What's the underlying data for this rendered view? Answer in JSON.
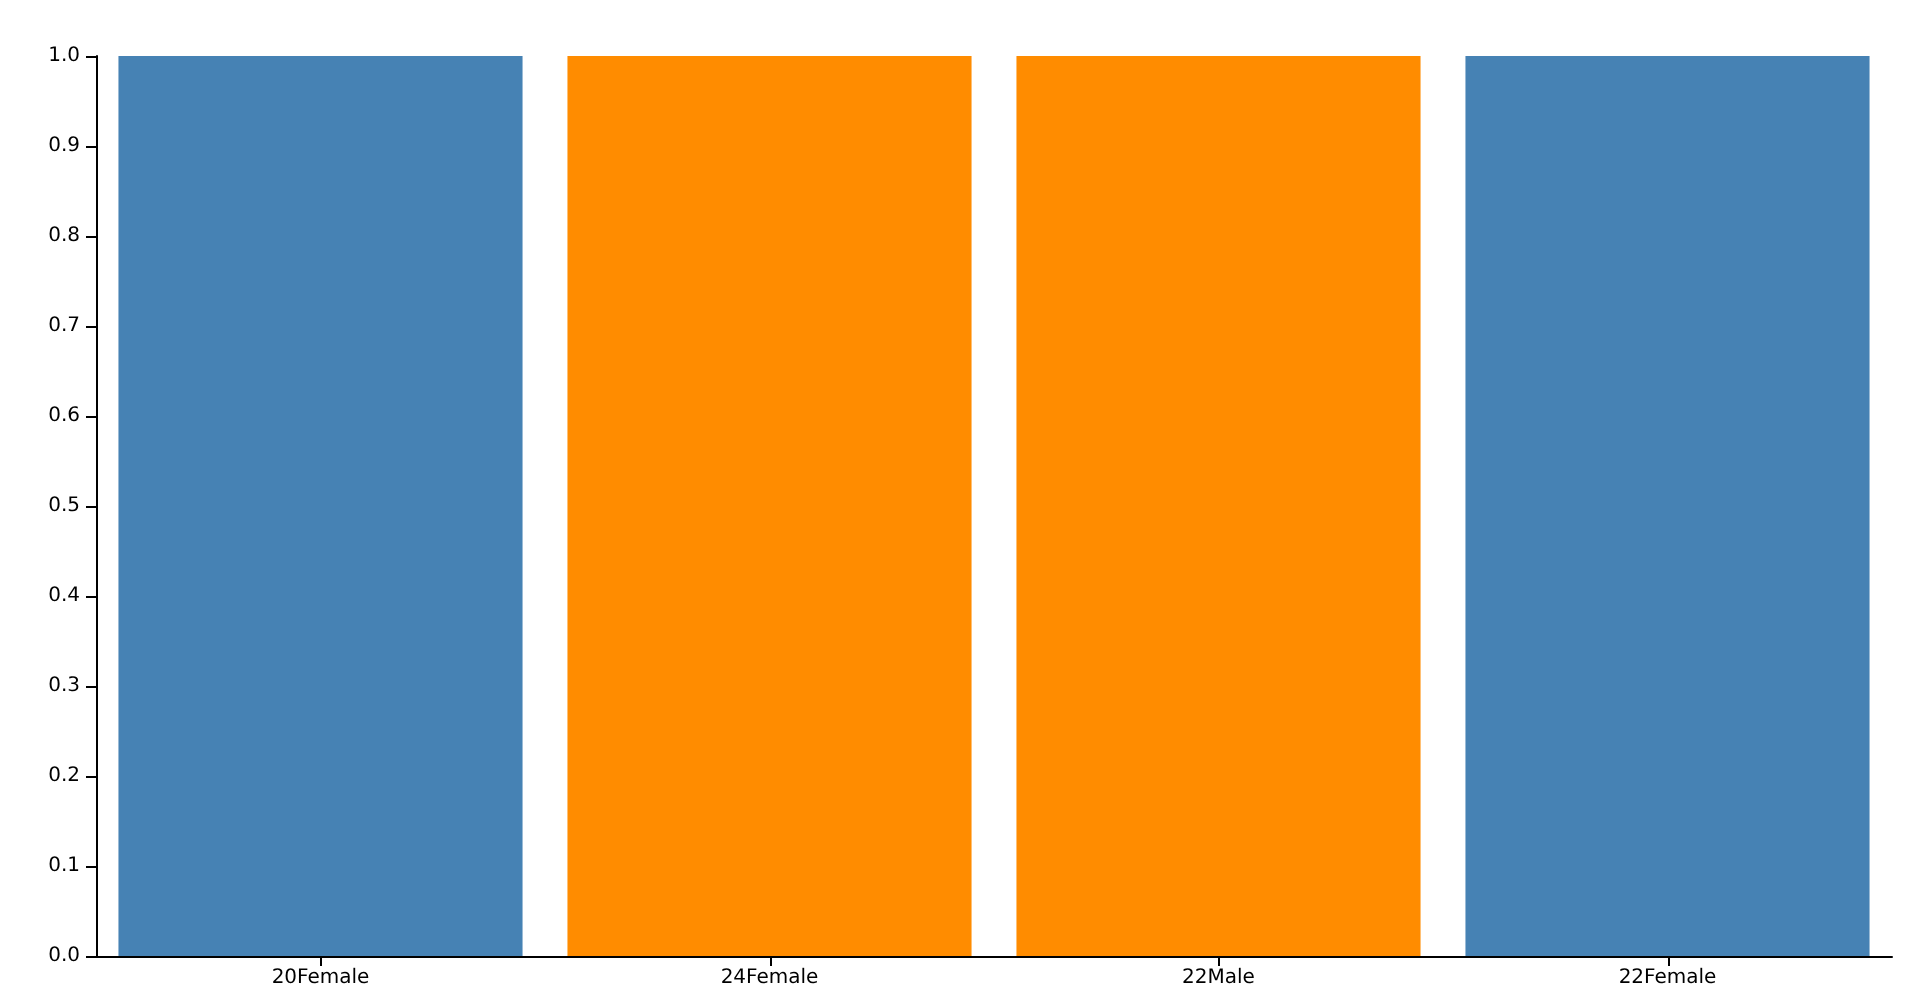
{
  "chart_data": {
    "type": "bar",
    "categories": [
      "20Female",
      "24Female",
      "22Male",
      "22Female"
    ],
    "values": [
      1,
      1,
      1,
      1
    ],
    "colors": [
      "#4682b4",
      "#ff8c00",
      "#ff8c00",
      "#4682b4"
    ],
    "ylim": [
      0,
      1
    ],
    "yticks": [
      {
        "value": 0,
        "label": "0.0"
      },
      {
        "value": 0.1,
        "label": "0.1"
      },
      {
        "value": 0.2,
        "label": "0.2"
      },
      {
        "value": 0.3,
        "label": "0.3"
      },
      {
        "value": 0.4,
        "label": "0.4"
      },
      {
        "value": 0.5,
        "label": "0.5"
      },
      {
        "value": 0.6,
        "label": "0.6"
      },
      {
        "value": 0.7,
        "label": "0.7"
      },
      {
        "value": 0.8,
        "label": "0.8"
      },
      {
        "value": 0.9,
        "label": "0.9"
      },
      {
        "value": 1,
        "label": "1.0"
      }
    ],
    "grid": false
  }
}
